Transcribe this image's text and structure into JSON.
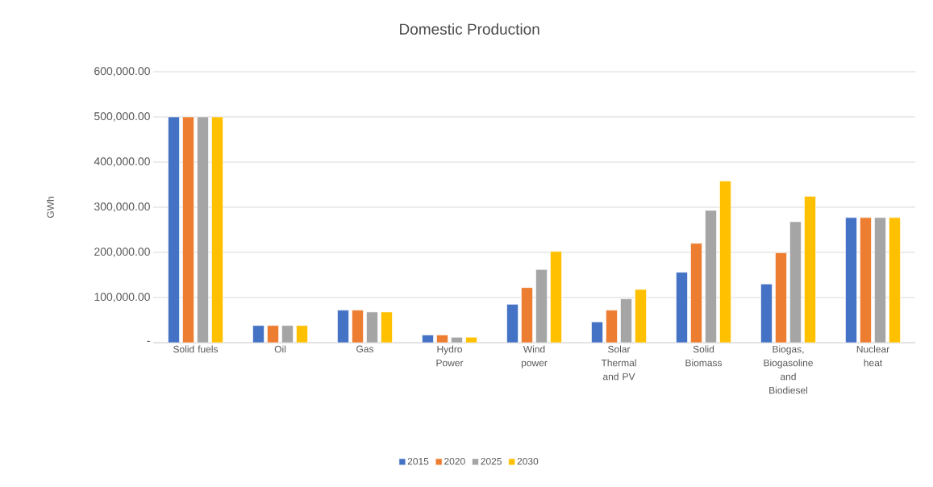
{
  "chart_data": {
    "type": "bar",
    "title": "Domestic Production",
    "ylabel": "GWh",
    "categories": [
      "Solid fuels",
      "Oil",
      "Gas",
      "Hydro Power",
      "Wind power",
      "Solar Thermal and PV",
      "Solid Biomass",
      "Biogas, Biogasoline and Biodiesel",
      "Nuclear heat"
    ],
    "series": [
      {
        "name": "2015",
        "color": "#4472c4",
        "values": [
          500000,
          38000,
          72000,
          17000,
          85000,
          46000,
          156000,
          130000,
          277000
        ]
      },
      {
        "name": "2020",
        "color": "#ed7d31",
        "values": [
          500000,
          38000,
          72000,
          17000,
          122000,
          72000,
          220000,
          199000,
          277000
        ]
      },
      {
        "name": "2025",
        "color": "#a5a5a5",
        "values": [
          500000,
          38000,
          68000,
          12000,
          162000,
          97000,
          293000,
          268000,
          277000
        ]
      },
      {
        "name": "2030",
        "color": "#ffc000",
        "values": [
          500000,
          38000,
          68000,
          12000,
          202000,
          118000,
          358000,
          324000,
          277000
        ]
      }
    ],
    "ylim": [
      0,
      600000
    ],
    "yticks": [
      {
        "value": 0,
        "label": "-"
      },
      {
        "value": 100000,
        "label": "100,000.00"
      },
      {
        "value": 200000,
        "label": "200,000.00"
      },
      {
        "value": 300000,
        "label": "300,000.00"
      },
      {
        "value": 400000,
        "label": "400,000.00"
      },
      {
        "value": 500000,
        "label": "500,000.00"
      },
      {
        "value": 600000,
        "label": "600,000.00"
      }
    ],
    "grid": "y",
    "legend": "bottom"
  }
}
